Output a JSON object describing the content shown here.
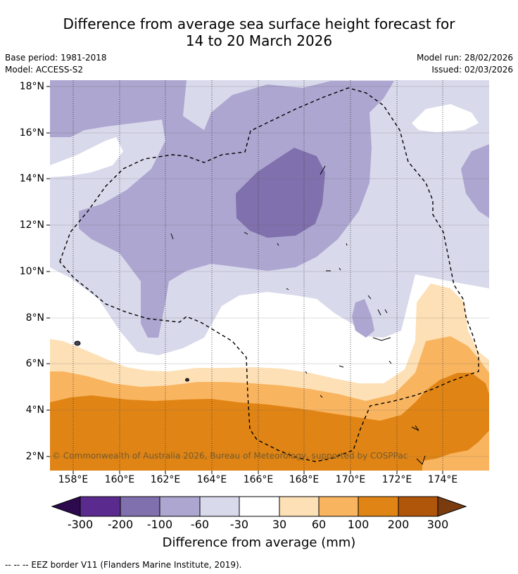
{
  "title_line1": "Difference from average sea surface height forecast for",
  "title_line2": "14 to 20 March 2026",
  "base_period": "Base period: 1981-2018",
  "model": "Model: ACCESS-S2",
  "model_run": "Model run: 28/02/2026",
  "issued": "Issued: 02/03/2026",
  "credit": "© Commonwealth of Australia 2026, Bureau of Meteorology, supported by COSPPac",
  "footer": "--  --  -- EEZ border V11 (Flanders Marine Institute, 2019).",
  "x_ticks": [
    "158°E",
    "160°E",
    "162°E",
    "164°E",
    "166°E",
    "168°E",
    "170°E",
    "172°E",
    "174°E"
  ],
  "y_ticks": [
    "18°N",
    "16°N",
    "14°N",
    "12°N",
    "10°N",
    "8°N",
    "6°N",
    "4°N",
    "2°N"
  ],
  "colorbar": {
    "title": "Difference from average (mm)",
    "labels": [
      "-300",
      "-200",
      "-100",
      "-60",
      "-30",
      "30",
      "60",
      "100",
      "200",
      "300"
    ],
    "colors": {
      "below_-300": "#2d0a4e",
      "-300_-200": "#5b2a8e",
      "-200_-100": "#8070ad",
      "-100_-60": "#ada6d0",
      "-60_-30": "#d9d9ec",
      "-30_30": "#ffffff",
      "30_60": "#fde0b5",
      "60_100": "#f9b45f",
      "100_200": "#e08515",
      "200_300": "#b0560b",
      "above_300": "#7a3b0f"
    }
  }
}
